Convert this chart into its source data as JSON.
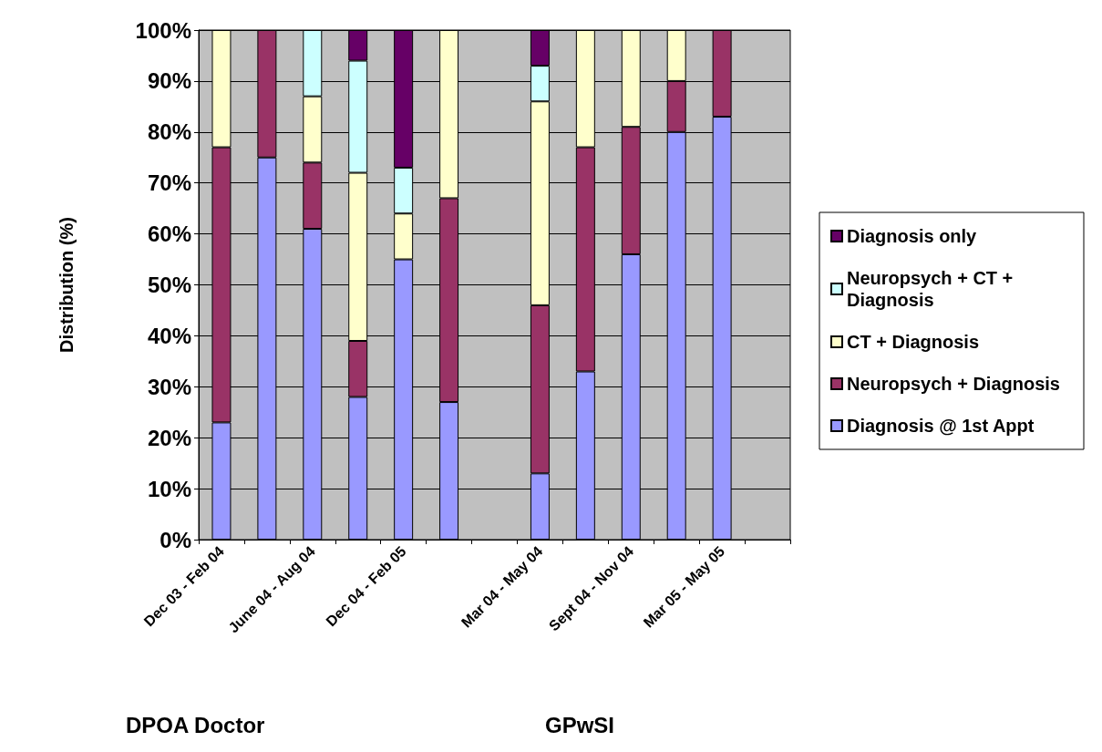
{
  "chart_data": {
    "type": "bar",
    "stacked": true,
    "ylabel": "Distribution (%)",
    "categories": [
      "Dec 03 - Feb 04",
      null,
      "June 04 - Aug 04",
      null,
      "Dec 04 - Feb 05",
      null,
      null,
      "Mar 04 - May 04",
      null,
      "Sept 04 - Nov 04",
      null,
      "Mar 05 - May 05",
      null
    ],
    "series": [
      {
        "name": "Diagnosis @ 1st Appt",
        "color": "#9999ff",
        "values": [
          23,
          75,
          61,
          28,
          55,
          27,
          null,
          13,
          33,
          56,
          80,
          83,
          null
        ]
      },
      {
        "name": "Neuropsych + Diagnosis",
        "color": "#993366",
        "values": [
          54,
          25,
          13,
          11,
          null,
          40,
          null,
          33,
          44,
          25,
          10,
          17,
          null
        ]
      },
      {
        "name": "CT + Diagnosis",
        "color": "#ffffcc",
        "values": [
          23,
          null,
          13,
          33,
          9,
          33,
          null,
          40,
          23,
          19,
          10,
          null,
          null
        ]
      },
      {
        "name": "Neuropsych + CT + Diagnosis",
        "color": "#ccffff",
        "values": [
          null,
          null,
          13,
          22,
          9,
          null,
          null,
          7,
          null,
          null,
          null,
          null,
          null
        ]
      },
      {
        "name": "Diagnosis only",
        "color": "#660066",
        "values": [
          null,
          null,
          null,
          6,
          27,
          null,
          null,
          7,
          null,
          null,
          null,
          null,
          null
        ]
      }
    ],
    "ylim": [
      0,
      100
    ],
    "yticks": [
      {
        "value": 0,
        "label": "0%"
      },
      {
        "value": 10,
        "label": "10%"
      },
      {
        "value": 20,
        "label": "20%"
      },
      {
        "value": 30,
        "label": "30%"
      },
      {
        "value": 40,
        "label": "40%"
      },
      {
        "value": 50,
        "label": "50%"
      },
      {
        "value": 60,
        "label": "60%"
      },
      {
        "value": 70,
        "label": "70%"
      },
      {
        "value": 80,
        "label": "80%"
      },
      {
        "value": 90,
        "label": "90%"
      },
      {
        "value": 100,
        "label": "100%"
      }
    ],
    "grid": "y",
    "legend": "right",
    "annotations": [
      "DPOA Doctor",
      "GPwSI"
    ]
  }
}
